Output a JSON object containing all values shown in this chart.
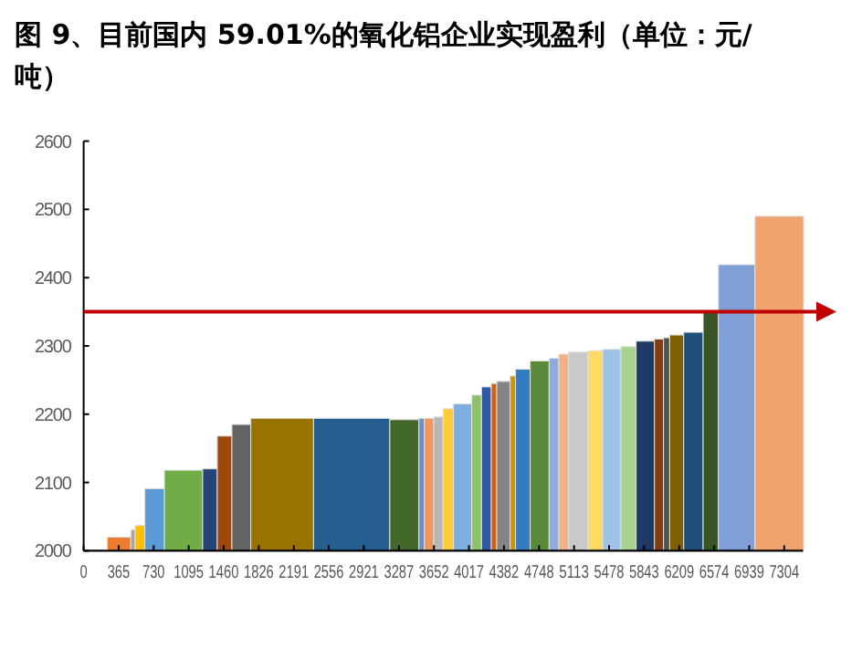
{
  "chart_data": {
    "type": "histogram",
    "title": "图 9、目前国内 59.01%的氧化铝企业实现盈利（单位：元/吨）",
    "bins": [
      245,
      492,
      537,
      638,
      842,
      1241,
      1393,
      1546,
      1743,
      2397,
      3192,
      3495,
      3552,
      3650,
      3748,
      3856,
      4047,
      4148,
      4250,
      4307,
      4446,
      4503,
      4656,
      4853,
      4954,
      5056,
      5259,
      5411,
      5602,
      5760,
      5951,
      6046,
      6110,
      6256,
      6459,
      6618,
      6999,
      7506
    ],
    "values": [
      2020,
      2031,
      2037,
      2091,
      2118,
      2120,
      2168,
      2185,
      2194,
      2194,
      2192,
      2194,
      2194,
      2196,
      2208,
      2215,
      2228,
      2240,
      2245,
      2248,
      2256,
      2266,
      2278,
      2282,
      2288,
      2291,
      2293,
      2295,
      2299,
      2307,
      2310,
      2312,
      2316,
      2320,
      2350,
      2419,
      2490
    ],
    "colors": [
      "#ed7d31",
      "#a5a5a5",
      "#ffc000",
      "#5b9bd5",
      "#70ad47",
      "#264478",
      "#9e480e",
      "#636363",
      "#997300",
      "#255e91",
      "#43682b",
      "#698ed0",
      "#f1975a",
      "#b7b7b7",
      "#ffcd33",
      "#7cafdd",
      "#8cc168",
      "#335aa1",
      "#d26012",
      "#848484",
      "#cc9a00",
      "#327dc2",
      "#5a8a39",
      "#8faadc",
      "#f4b183",
      "#c9c9c9",
      "#ffd966",
      "#9dc3e6",
      "#a9d18e",
      "#203864",
      "#843c0c",
      "#525252",
      "#7f6000",
      "#1f4e79",
      "#375623",
      "#7f9fd6",
      "#f0a46d"
    ],
    "xlim": [
      0,
      7500
    ],
    "xticks": [
      0,
      365,
      730,
      1095,
      1460,
      1826,
      2191,
      2556,
      2921,
      3287,
      3652,
      4017,
      4382,
      4748,
      5113,
      5478,
      5843,
      6209,
      6574,
      6939,
      7304
    ],
    "ylim": [
      2000,
      2600
    ],
    "yticks": [
      2000,
      2100,
      2200,
      2300,
      2400,
      2500,
      2600
    ],
    "ref_lines": [
      {
        "axis": "y",
        "value": 2350,
        "color": "#c00000"
      }
    ],
    "grid": false
  }
}
